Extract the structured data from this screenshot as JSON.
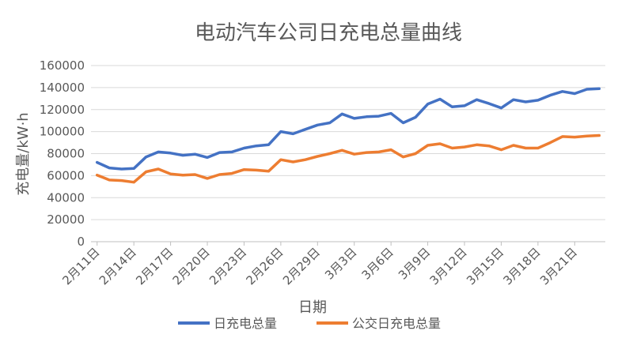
{
  "chart_data": {
    "type": "line",
    "title": "电动汽车公司日充电总量曲线",
    "xlabel": "日期",
    "ylabel": "充电量/kW·h",
    "ylim": [
      0,
      160000
    ],
    "yticks": [
      0,
      20000,
      40000,
      60000,
      80000,
      100000,
      120000,
      140000,
      160000
    ],
    "legend_position": "bottom",
    "grid": true,
    "x_tick_labels": [
      "2月11日",
      "2月14日",
      "2月17日",
      "2月20日",
      "2月23日",
      "2月26日",
      "2月29日",
      "3月3日",
      "3月6日",
      "3月9日",
      "3月12日",
      "3月15日",
      "3月18日",
      "3月21日"
    ],
    "x": [
      "2月11日",
      "2月12日",
      "2月13日",
      "2月14日",
      "2月15日",
      "2月16日",
      "2月17日",
      "2月18日",
      "2月19日",
      "2月20日",
      "2月21日",
      "2月22日",
      "2月23日",
      "2月24日",
      "2月25日",
      "2月26日",
      "2月27日",
      "2月28日",
      "2月29日",
      "3月1日",
      "3月2日",
      "3月3日",
      "3月4日",
      "3月5日",
      "3月6日",
      "3月7日",
      "3月8日",
      "3月9日",
      "3月10日",
      "3月11日",
      "3月12日",
      "3月13日",
      "3月14日",
      "3月15日",
      "3月16日",
      "3月17日",
      "3月18日",
      "3月19日",
      "3月20日",
      "3月21日",
      "3月22日",
      "3月23日"
    ],
    "series": [
      {
        "name": "日充电总量",
        "color": "#4472C4",
        "values": [
          72000,
          67000,
          66000,
          66500,
          77000,
          81500,
          80500,
          78500,
          79500,
          76500,
          81000,
          81500,
          85000,
          87000,
          88000,
          100000,
          98000,
          102000,
          106000,
          108000,
          116000,
          112000,
          113500,
          114000,
          116500,
          108000,
          113000,
          125000,
          129500,
          122500,
          123500,
          129000,
          125500,
          121500,
          129000,
          127000,
          128500,
          133000,
          136500,
          134500,
          138500,
          139000
        ]
      },
      {
        "name": "公交日充电总量",
        "color": "#ED7D31",
        "values": [
          60500,
          56000,
          55500,
          54000,
          63500,
          66000,
          61500,
          60500,
          61000,
          57500,
          61000,
          62000,
          65500,
          65000,
          64000,
          74500,
          72500,
          74500,
          77500,
          80000,
          83000,
          79500,
          81000,
          81500,
          83500,
          77000,
          80000,
          87500,
          89000,
          85000,
          86000,
          88000,
          87000,
          83500,
          87500,
          85000,
          85000,
          90000,
          95500,
          95000,
          96000,
          96500
        ]
      }
    ]
  }
}
